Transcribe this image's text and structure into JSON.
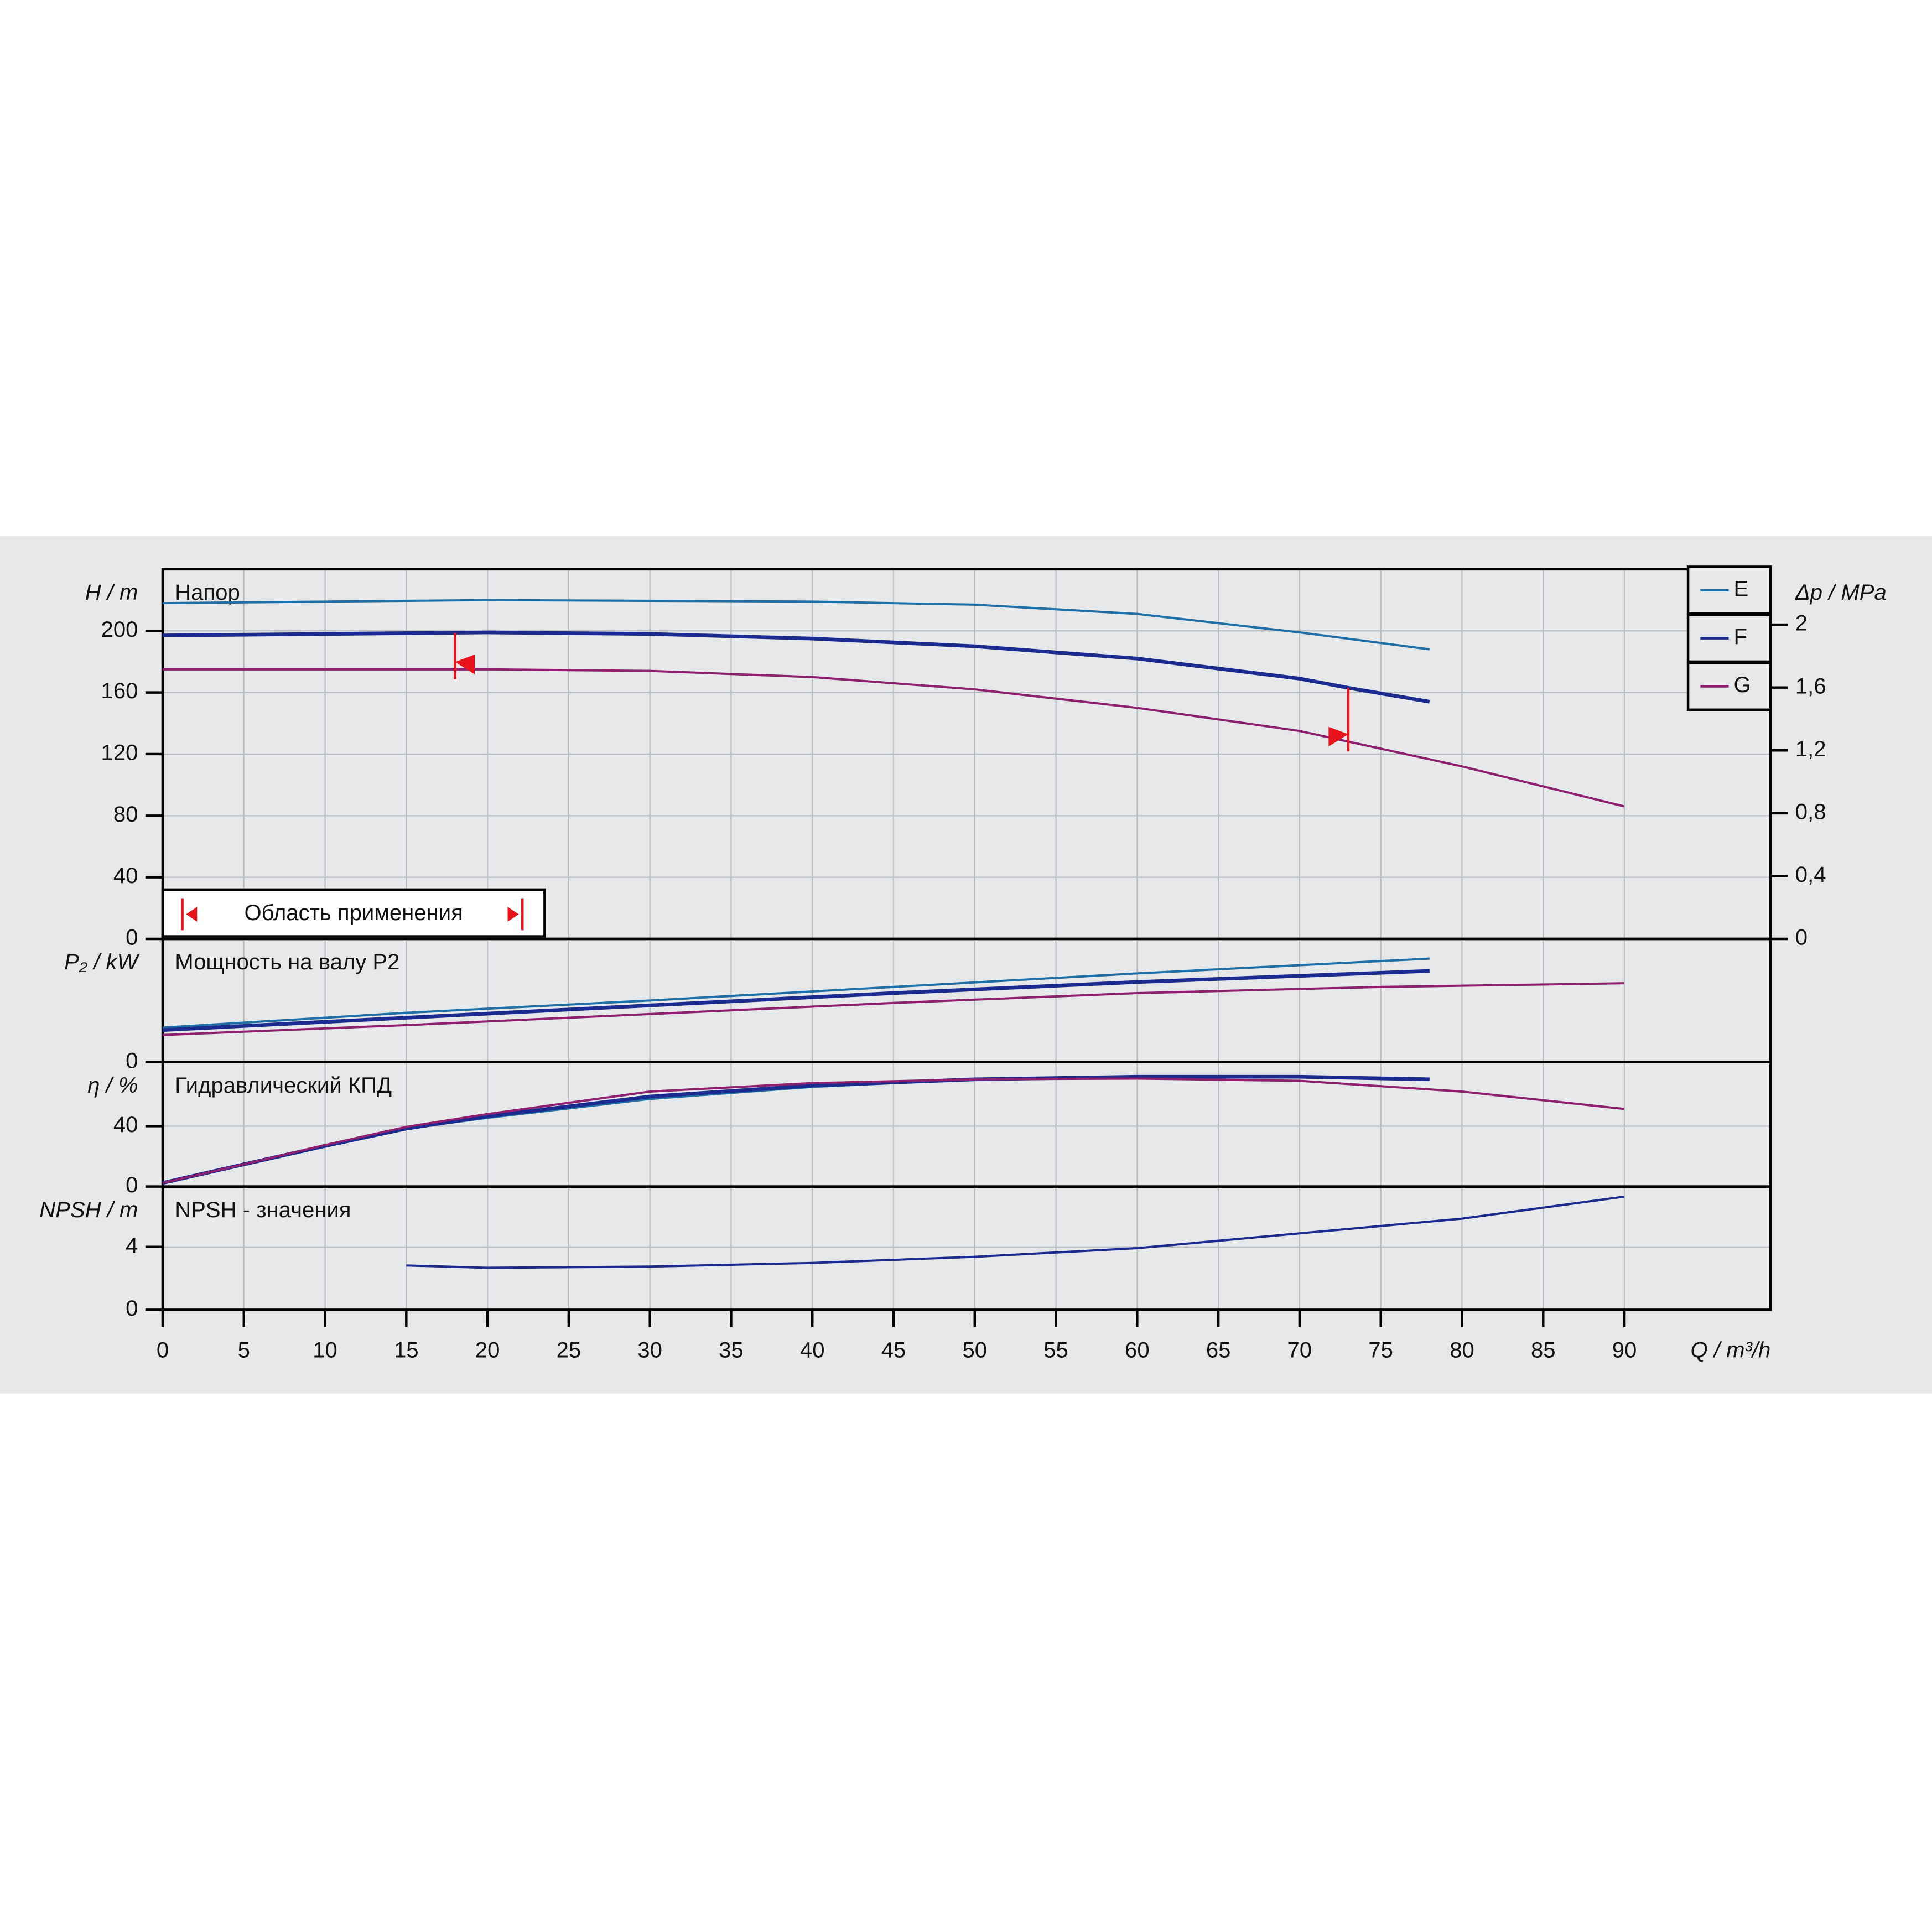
{
  "chart_data": [
    {
      "type": "line",
      "title": "Напор",
      "ylabel": "H / m",
      "y2label": "Δp / MPa",
      "ylim": [
        0,
        240
      ],
      "yticks": [
        0,
        40,
        80,
        120,
        160,
        200
      ],
      "y2lim": [
        0,
        2.353
      ],
      "y2ticks": [
        0,
        {
          "value": 0.4,
          "label": "0,4"
        },
        {
          "value": 0.8,
          "label": "0,8"
        },
        {
          "value": 1.2,
          "label": "1,2"
        },
        {
          "value": 1.6,
          "label": "1,6"
        },
        2
      ],
      "annotation": "Область применения",
      "application_range": [
        18,
        73
      ],
      "grid": true,
      "legend": "upper right",
      "series": [
        {
          "name": "E",
          "color": "#1f6ea6",
          "x": [
            0,
            20,
            40,
            50,
            60,
            70,
            78
          ],
          "values": [
            218,
            220,
            219,
            217,
            211,
            199,
            188
          ]
        },
        {
          "name": "F",
          "color": "#1b2a8e",
          "x": [
            0,
            20,
            30,
            40,
            50,
            60,
            70,
            73,
            78
          ],
          "values": [
            197,
            199,
            198,
            195,
            190,
            182,
            169,
            163,
            154
          ]
        },
        {
          "name": "G",
          "color": "#8e1f6e",
          "x": [
            0,
            20,
            30,
            40,
            50,
            60,
            70,
            80,
            90
          ],
          "values": [
            175,
            175,
            174,
            170,
            162,
            150,
            135,
            112,
            86
          ]
        }
      ]
    },
    {
      "type": "line",
      "title": "Мощность на валу P2",
      "ylabel": "P₂ / kW",
      "ylim": [
        0,
        60
      ],
      "yticks": [
        0
      ],
      "grid": true,
      "series": [
        {
          "color": "#1f6ea6",
          "x": [
            0,
            15,
            30,
            45,
            60,
            78
          ],
          "values": [
            16.8,
            24,
            30,
            36.6,
            43.2,
            50.4
          ]
        },
        {
          "color": "#1b2a8e",
          "x": [
            0,
            15,
            30,
            45,
            60,
            78
          ],
          "values": [
            15.6,
            21.6,
            27.6,
            33.6,
            39,
            44.4
          ]
        },
        {
          "color": "#8e1f6e",
          "x": [
            0,
            15,
            30,
            45,
            60,
            75,
            90
          ],
          "values": [
            13.2,
            18,
            23.4,
            28.8,
            33.6,
            36.6,
            38.4
          ]
        }
      ]
    },
    {
      "type": "line",
      "title": "Гидравлический КПД",
      "ylabel": "η / %",
      "ylim": [
        0,
        82.4
      ],
      "yticks": [
        0,
        40
      ],
      "grid": true,
      "series": [
        {
          "color": "#1f6ea6",
          "x": [
            0,
            5,
            10,
            15,
            20,
            30,
            40,
            50,
            60,
            70,
            78
          ],
          "values": [
            2.4,
            14.7,
            26.9,
            38.4,
            45.5,
            58,
            66,
            71,
            72.7,
            72.7,
            71.5
          ]
        },
        {
          "color": "#1b2a8e",
          "x": [
            0,
            5,
            10,
            15,
            20,
            30,
            40,
            50,
            60,
            70,
            78
          ],
          "values": [
            2.4,
            14.7,
            26.9,
            38.4,
            46.5,
            59.6,
            66.9,
            71,
            72.7,
            72.7,
            71
          ]
        },
        {
          "color": "#8e1f6e",
          "x": [
            0,
            5,
            10,
            15,
            20,
            30,
            40,
            50,
            60,
            70,
            80,
            90
          ],
          "values": [
            2.4,
            14.7,
            27.5,
            39.5,
            48,
            62.9,
            68.5,
            71,
            71.5,
            70,
            62.9,
            51.4
          ]
        }
      ]
    },
    {
      "type": "line",
      "title": "NPSH - значения",
      "ylabel": "NPSH / m",
      "ylim": [
        0,
        7.84
      ],
      "yticks": [
        0,
        4
      ],
      "grid": true,
      "xlabel": "Q / m³/h",
      "xlim": [
        0,
        99
      ],
      "xticks": [
        0,
        5,
        10,
        15,
        20,
        25,
        30,
        35,
        40,
        45,
        50,
        55,
        60,
        65,
        70,
        75,
        80,
        85,
        90
      ],
      "series": [
        {
          "color": "#1b2a8e",
          "x": [
            15,
            20,
            30,
            40,
            50,
            60,
            70,
            80,
            90
          ],
          "values": [
            2.82,
            2.67,
            2.75,
            2.98,
            3.37,
            3.92,
            4.86,
            5.8,
            7.2
          ]
        }
      ]
    }
  ]
}
